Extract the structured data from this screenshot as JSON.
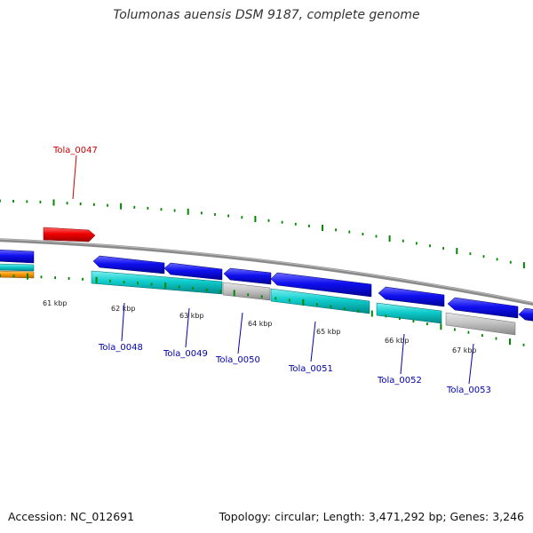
{
  "title": "Tolumonas auensis DSM 9187, complete genome",
  "footer": {
    "accession": "Accession: NC_012691",
    "summary": "Topology: circular; Length: 3,471,292 bp; Genes: 3,246"
  },
  "kbp_labels": [
    "61 kbp",
    "62 kbp",
    "63 kbp",
    "64 kbp",
    "65 kbp",
    "66 kbp",
    "67 kbp"
  ],
  "gene_labels": {
    "Tola_0047": "Tola_0047",
    "Tola_0048": "Tola_0048",
    "Tola_0049": "Tola_0049",
    "Tola_0050": "Tola_0050",
    "Tola_0051": "Tola_0051",
    "Tola_0052": "Tola_0052",
    "Tola_0053": "Tola_0053"
  },
  "colors": {
    "cds_forward": "#0000ee",
    "cds_forward_highlight": "#ee0000",
    "gene_match": "#00c8c8",
    "gene_nomatch": "#c0c0c0",
    "gene_other": "#ff9900",
    "tick": "#008800",
    "backbone": "#808080",
    "label_forward": "#cc0000",
    "label_reverse": "#0000aa"
  }
}
